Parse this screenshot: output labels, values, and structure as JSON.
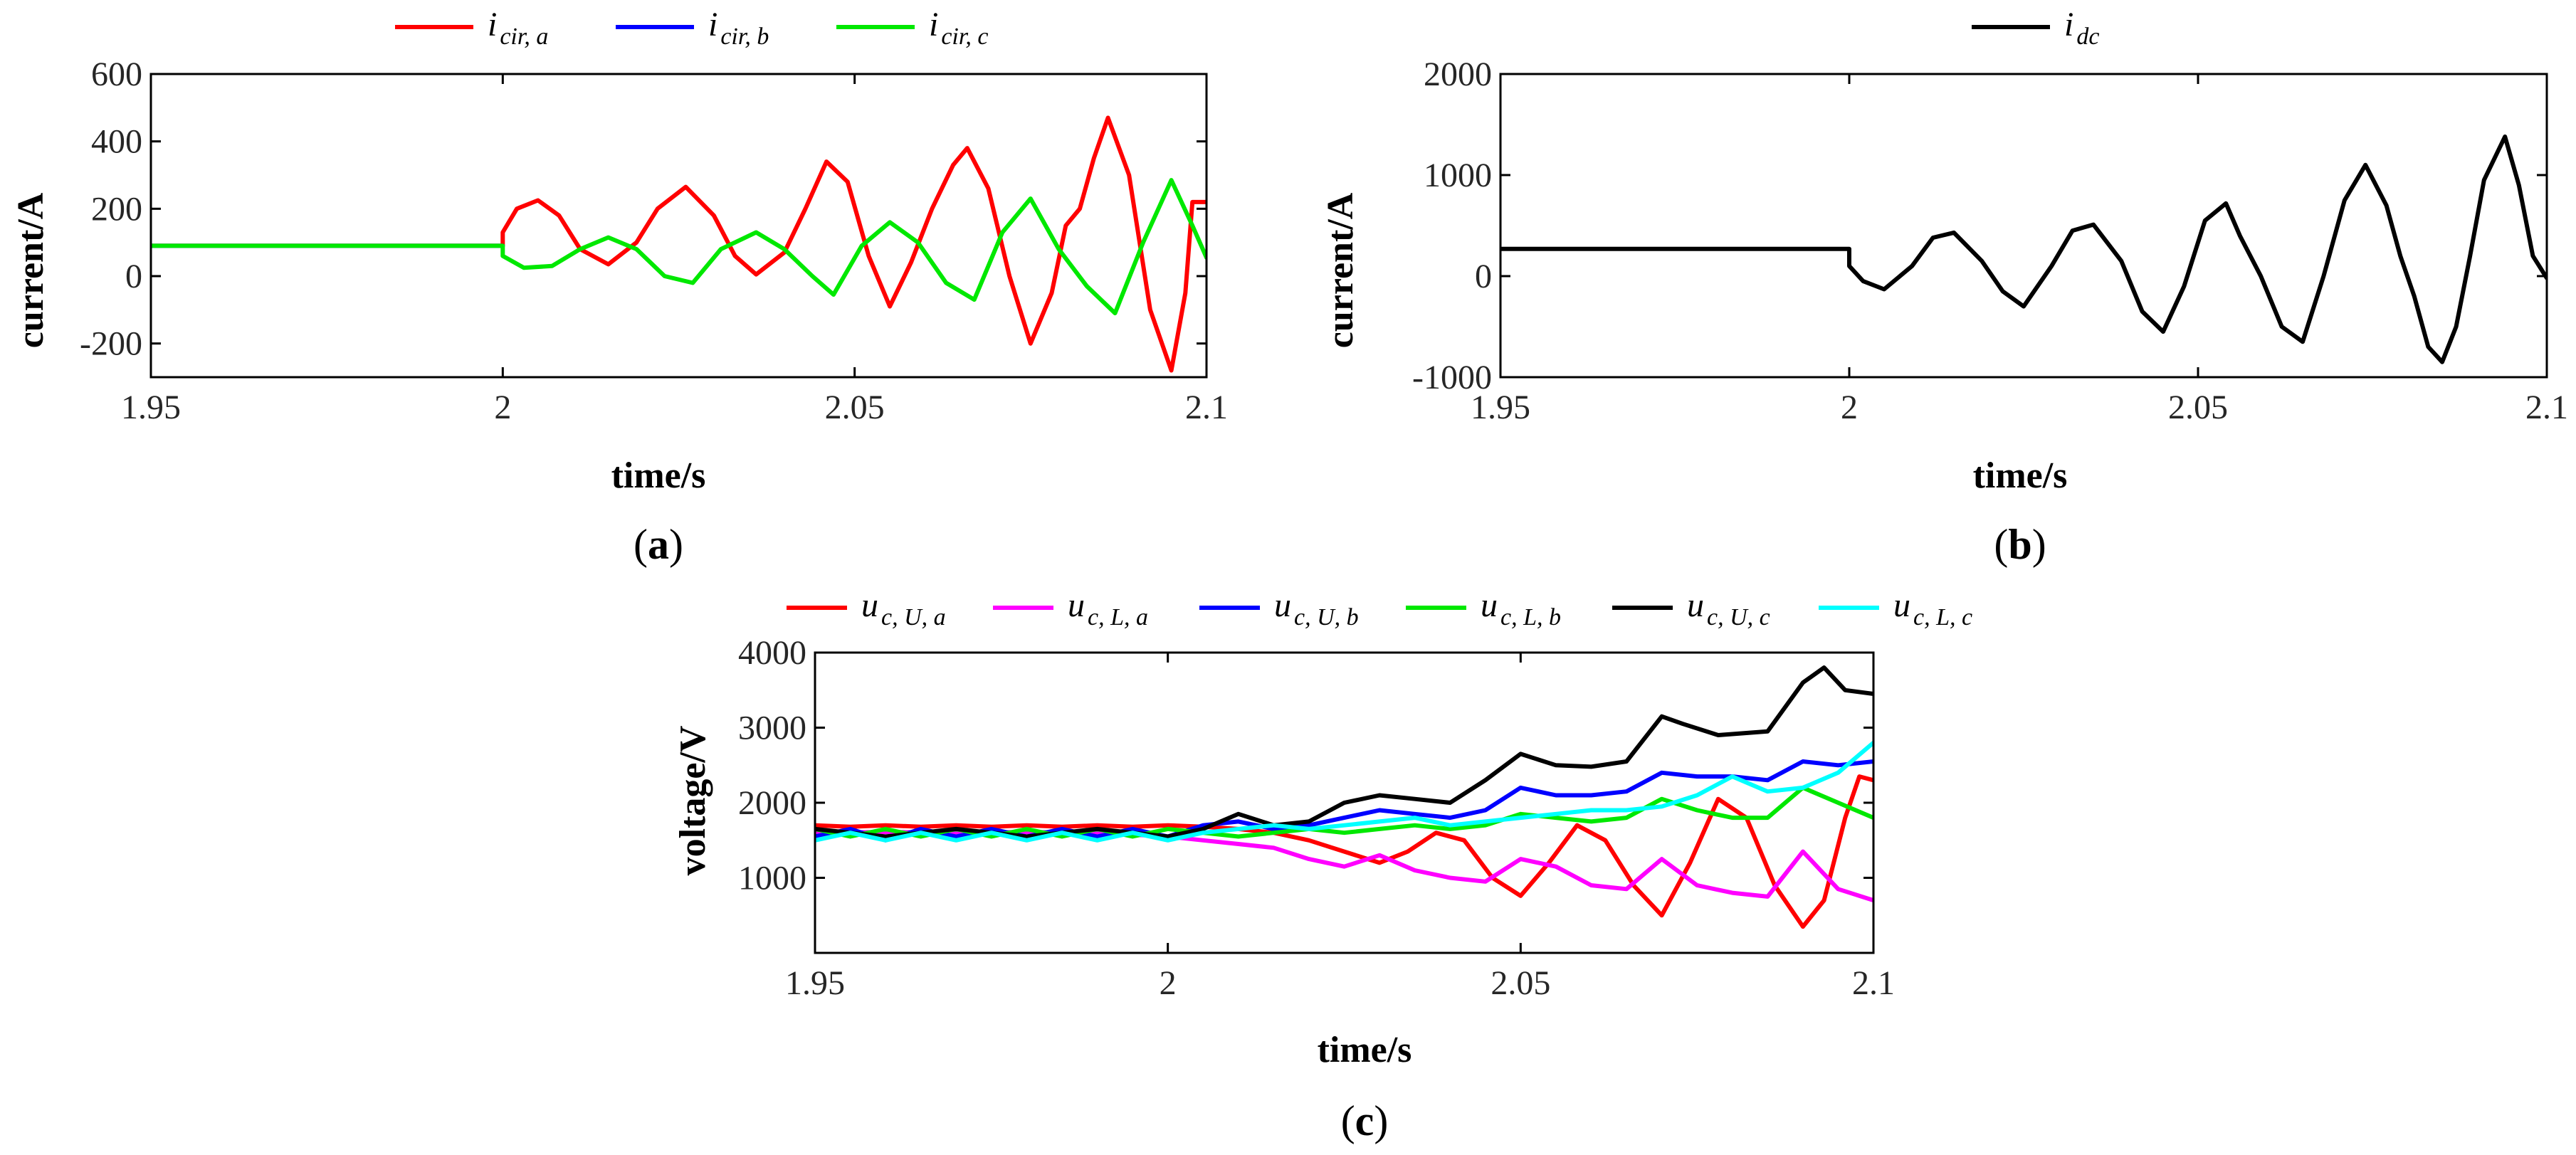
{
  "chart_data": [
    {
      "type": "line",
      "panel": "(a)",
      "panel_letter": "a",
      "xlabel": "time/s",
      "ylabel": "current/A",
      "xlim": [
        1.95,
        2.1
      ],
      "ylim": [
        -300,
        600
      ],
      "xticks": [
        1.95,
        2,
        2.05,
        2.1
      ],
      "xtick_labels": [
        "1.95",
        "2",
        "2.05",
        "2.1"
      ],
      "yticks": [
        -200,
        0,
        200,
        400,
        600
      ],
      "ytick_labels": [
        "-200",
        "0",
        "200",
        "400",
        "600"
      ],
      "series": [
        {
          "name": "i_cir,a",
          "label_main": "i",
          "label_sub": "cir, a",
          "color": "#ff0000",
          "x": [
            1.95,
            2.0,
            2.0,
            2.002,
            2.005,
            2.008,
            2.011,
            2.015,
            2.019,
            2.022,
            2.026,
            2.03,
            2.033,
            2.036,
            2.04,
            2.043,
            2.046,
            2.049,
            2.052,
            2.055,
            2.058,
            2.061,
            2.064,
            2.066,
            2.069,
            2.072,
            2.075,
            2.078,
            2.08,
            2.082,
            2.084,
            2.086,
            2.089,
            2.092,
            2.095,
            2.097,
            2.098,
            2.1
          ],
          "y": [
            90,
            90,
            130,
            200,
            225,
            180,
            80,
            35,
            100,
            200,
            265,
            180,
            60,
            5,
            70,
            200,
            340,
            280,
            60,
            -90,
            40,
            200,
            330,
            380,
            260,
            0,
            -200,
            -50,
            150,
            200,
            350,
            470,
            300,
            -100,
            -280,
            -50,
            220,
            220
          ]
        },
        {
          "name": "i_cir,b",
          "label_main": "i",
          "label_sub": "cir, b",
          "color": "#0000ff",
          "x": [
            1.95,
            2.0
          ],
          "y": [
            90,
            90
          ]
        },
        {
          "name": "i_cir,c",
          "label_main": "i",
          "label_sub": "cir, c",
          "color": "#00e800",
          "x": [
            1.95,
            2.0,
            2.0,
            2.003,
            2.007,
            2.011,
            2.015,
            2.019,
            2.023,
            2.027,
            2.031,
            2.036,
            2.04,
            2.044,
            2.047,
            2.051,
            2.055,
            2.059,
            2.063,
            2.067,
            2.071,
            2.075,
            2.079,
            2.083,
            2.087,
            2.091,
            2.095,
            2.098,
            2.1
          ],
          "y": [
            90,
            90,
            60,
            25,
            30,
            80,
            115,
            80,
            0,
            -20,
            80,
            130,
            80,
            0,
            -55,
            90,
            160,
            100,
            -20,
            -70,
            130,
            230,
            80,
            -30,
            -110,
            100,
            285,
            150,
            55
          ]
        }
      ]
    },
    {
      "type": "line",
      "panel": "(b)",
      "panel_letter": "b",
      "xlabel": "time/s",
      "ylabel": "current/A",
      "xlim": [
        1.95,
        2.1
      ],
      "ylim": [
        -1000,
        2000
      ],
      "xticks": [
        1.95,
        2,
        2.05,
        2.1
      ],
      "xtick_labels": [
        "1.95",
        "2",
        "2.05",
        "2.1"
      ],
      "yticks": [
        -1000,
        0,
        1000,
        2000
      ],
      "ytick_labels": [
        "-1000",
        "0",
        "1000",
        "2000"
      ],
      "series": [
        {
          "name": "i_dc",
          "label_main": "i",
          "label_sub": "dc",
          "color": "#000000",
          "x": [
            1.95,
            2.0,
            2.0,
            2.002,
            2.005,
            2.009,
            2.012,
            2.015,
            2.019,
            2.022,
            2.025,
            2.029,
            2.032,
            2.035,
            2.039,
            2.042,
            2.045,
            2.048,
            2.051,
            2.054,
            2.056,
            2.059,
            2.062,
            2.065,
            2.068,
            2.071,
            2.074,
            2.077,
            2.079,
            2.081,
            2.083,
            2.085,
            2.087,
            2.089,
            2.091,
            2.094,
            2.096,
            2.098,
            2.1
          ],
          "y": [
            270,
            270,
            100,
            -50,
            -130,
            100,
            380,
            430,
            150,
            -150,
            -300,
            100,
            450,
            510,
            150,
            -350,
            -550,
            -100,
            550,
            720,
            400,
            0,
            -500,
            -650,
            0,
            750,
            1100,
            700,
            200,
            -200,
            -700,
            -850,
            -500,
            200,
            950,
            1380,
            900,
            200,
            -20
          ]
        }
      ]
    },
    {
      "type": "line",
      "panel": "(c)",
      "panel_letter": "c",
      "xlabel": "time/s",
      "ylabel": "voltage/V",
      "xlim": [
        1.95,
        2.1
      ],
      "ylim": [
        0,
        4000
      ],
      "xticks": [
        1.95,
        2,
        2.05,
        2.1
      ],
      "xtick_labels": [
        "1.95",
        "2",
        "2.05",
        "2.1"
      ],
      "yticks": [
        1000,
        2000,
        3000,
        4000
      ],
      "ytick_labels": [
        "1000",
        "2000",
        "3000",
        "4000"
      ],
      "series": [
        {
          "name": "u_c,U,a",
          "label_main": "u",
          "label_sub": "c, U, a",
          "color": "#ff0000",
          "x": [
            1.95,
            1.955,
            1.96,
            1.965,
            1.97,
            1.975,
            1.98,
            1.985,
            1.99,
            1.995,
            2.0,
            2.005,
            2.01,
            2.015,
            2.02,
            2.025,
            2.03,
            2.034,
            2.038,
            2.042,
            2.046,
            2.05,
            2.054,
            2.058,
            2.062,
            2.066,
            2.07,
            2.074,
            2.078,
            2.082,
            2.086,
            2.09,
            2.093,
            2.096,
            2.098,
            2.1
          ],
          "y": [
            1700,
            1680,
            1700,
            1680,
            1700,
            1680,
            1700,
            1680,
            1700,
            1680,
            1700,
            1680,
            1650,
            1600,
            1500,
            1350,
            1200,
            1350,
            1600,
            1500,
            1000,
            760,
            1200,
            1700,
            1500,
            900,
            500,
            1200,
            2050,
            1800,
            900,
            350,
            700,
            1800,
            2350,
            2300
          ]
        },
        {
          "name": "u_c,L,a",
          "label_main": "u",
          "label_sub": "c, L, a",
          "color": "#ff00ff",
          "x": [
            1.95,
            1.96,
            1.97,
            1.98,
            1.99,
            2.0,
            2.005,
            2.01,
            2.015,
            2.02,
            2.025,
            2.03,
            2.035,
            2.04,
            2.045,
            2.05,
            2.055,
            2.06,
            2.065,
            2.07,
            2.075,
            2.08,
            2.085,
            2.09,
            2.095,
            2.1
          ],
          "y": [
            1600,
            1610,
            1600,
            1610,
            1600,
            1550,
            1500,
            1450,
            1400,
            1250,
            1150,
            1300,
            1100,
            1000,
            950,
            1250,
            1150,
            900,
            850,
            1250,
            900,
            800,
            750,
            1350,
            850,
            700
          ]
        },
        {
          "name": "u_c,U,b",
          "label_main": "u",
          "label_sub": "c, U, b",
          "color": "#0000ff",
          "x": [
            1.95,
            1.955,
            1.96,
            1.965,
            1.97,
            1.975,
            1.98,
            1.985,
            1.99,
            1.995,
            2.0,
            2.005,
            2.01,
            2.015,
            2.02,
            2.025,
            2.03,
            2.035,
            2.04,
            2.045,
            2.05,
            2.055,
            2.06,
            2.065,
            2.07,
            2.075,
            2.08,
            2.085,
            2.09,
            2.095,
            2.1
          ],
          "y": [
            1550,
            1650,
            1500,
            1650,
            1550,
            1650,
            1550,
            1650,
            1550,
            1650,
            1550,
            1700,
            1750,
            1650,
            1700,
            1800,
            1900,
            1850,
            1800,
            1900,
            2200,
            2100,
            2100,
            2150,
            2400,
            2350,
            2350,
            2300,
            2550,
            2500,
            2550
          ]
        },
        {
          "name": "u_c,L,b",
          "label_main": "u",
          "label_sub": "c, L, b",
          "color": "#00e800",
          "x": [
            1.95,
            1.955,
            1.96,
            1.965,
            1.97,
            1.975,
            1.98,
            1.985,
            1.99,
            1.995,
            2.0,
            2.005,
            2.01,
            2.015,
            2.02,
            2.025,
            2.03,
            2.035,
            2.04,
            2.045,
            2.05,
            2.055,
            2.06,
            2.065,
            2.07,
            2.075,
            2.08,
            2.085,
            2.09,
            2.095,
            2.1
          ],
          "y": [
            1650,
            1550,
            1650,
            1550,
            1650,
            1550,
            1650,
            1550,
            1650,
            1550,
            1650,
            1600,
            1550,
            1600,
            1650,
            1600,
            1650,
            1700,
            1650,
            1700,
            1850,
            1800,
            1750,
            1800,
            2050,
            1900,
            1800,
            1800,
            2200,
            2000,
            1800
          ]
        },
        {
          "name": "u_c,U,c",
          "label_main": "u",
          "label_sub": "c, U, c",
          "color": "#000000",
          "x": [
            1.95,
            1.955,
            1.96,
            1.965,
            1.97,
            1.975,
            1.98,
            1.985,
            1.99,
            1.995,
            2.0,
            2.005,
            2.01,
            2.015,
            2.02,
            2.025,
            2.03,
            2.035,
            2.04,
            2.045,
            2.05,
            2.055,
            2.06,
            2.065,
            2.07,
            2.073,
            2.078,
            2.085,
            2.09,
            2.093,
            2.096,
            2.1
          ],
          "y": [
            1650,
            1600,
            1550,
            1600,
            1650,
            1600,
            1550,
            1600,
            1650,
            1600,
            1550,
            1650,
            1850,
            1700,
            1750,
            2000,
            2100,
            2050,
            2000,
            2300,
            2650,
            2500,
            2480,
            2550,
            3150,
            3050,
            2900,
            2950,
            3600,
            3800,
            3500,
            3450
          ]
        },
        {
          "name": "u_c,L,c",
          "label_main": "u",
          "label_sub": "c, L, c",
          "color": "#00ffff",
          "x": [
            1.95,
            1.955,
            1.96,
            1.965,
            1.97,
            1.975,
            1.98,
            1.985,
            1.99,
            1.995,
            2.0,
            2.005,
            2.01,
            2.015,
            2.02,
            2.025,
            2.03,
            2.035,
            2.04,
            2.045,
            2.05,
            2.055,
            2.06,
            2.065,
            2.07,
            2.075,
            2.08,
            2.085,
            2.09,
            2.095,
            2.1
          ],
          "y": [
            1500,
            1600,
            1500,
            1600,
            1500,
            1600,
            1500,
            1600,
            1500,
            1600,
            1500,
            1600,
            1650,
            1700,
            1650,
            1700,
            1750,
            1800,
            1700,
            1750,
            1800,
            1850,
            1900,
            1900,
            1950,
            2100,
            2350,
            2150,
            2200,
            2400,
            2800
          ]
        }
      ]
    }
  ]
}
